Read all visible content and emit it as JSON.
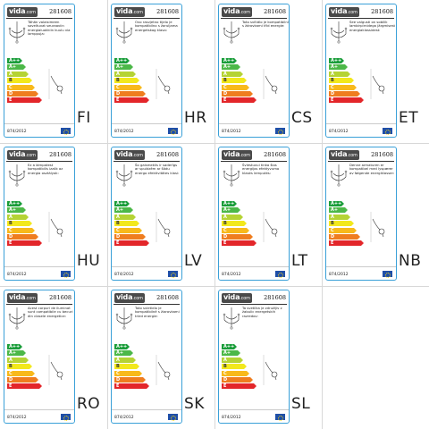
{
  "product_code": "281608",
  "brand": {
    "main": "vida",
    "suffix": ".com"
  },
  "regulation": "874/2012",
  "energy_classes": [
    {
      "label": "A++",
      "color": "#1a9d3a"
    },
    {
      "label": "A+",
      "color": "#4cb848"
    },
    {
      "label": "A",
      "color": "#b5d334"
    },
    {
      "label": "B",
      "color": "#f2e81c"
    },
    {
      "label": "C",
      "color": "#f8b91b"
    },
    {
      "label": "D",
      "color": "#ef7d1f"
    },
    {
      "label": "E",
      "color": "#e3262a"
    }
  ],
  "labels": [
    {
      "lang": "FI",
      "text": "Tähän valaisimeen soveltuvat seuraaviin energialuokkiin kuulu via lamppuja:"
    },
    {
      "lang": "HR",
      "text": "Ovo rasvjetno tijelo je kompatibilno s žaruljama energetskog klasa:"
    },
    {
      "lang": "CS",
      "text": "Toto svítidlo je kompatibilní s žárovkami tříd energie:"
    },
    {
      "lang": "ET",
      "text": "See valgusti on sobilik lambirpirnidega järgmisest energiaklassidest:"
    },
    {
      "lang": "HU",
      "text": "Ez a lámpatest kompatibilis izzók az energia osztályok:"
    },
    {
      "lang": "LV",
      "text": "Šo gaismeklis ir saderīgs ar spuldzēm ar šādu energo efektivitātes klasi:"
    },
    {
      "lang": "LT",
      "text": "Šviestuvui tinka šios energijos efektyvumo klasės lemputės:"
    },
    {
      "lang": "NB",
      "text": "Denne armaturen er kompatibel med lyspærer av følgende energiklasser:"
    },
    {
      "lang": "RO",
      "text": "Acest corpuri de iluminat sunt compatibile cu becuri din clasele energetice:"
    },
    {
      "lang": "SK",
      "text": "Toto svietidlo je kompatibilné s žiarovkami tried energie:"
    },
    {
      "lang": "SL",
      "text": "Ta svetilka je združljiv z žabulic energetskih razredov:"
    }
  ]
}
